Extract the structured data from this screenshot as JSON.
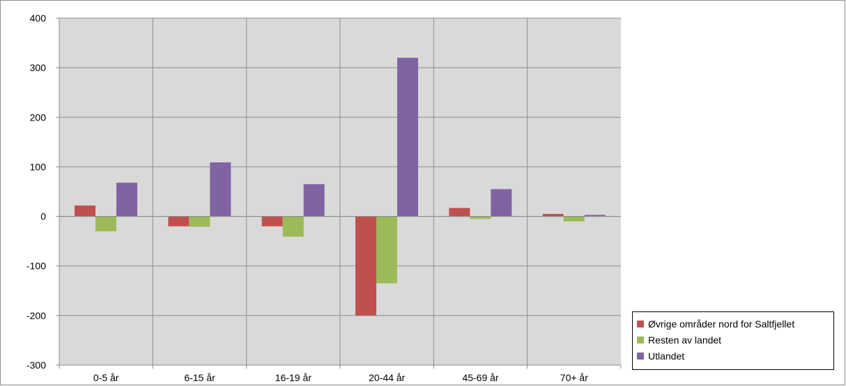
{
  "chart_data": {
    "type": "bar",
    "categories": [
      "0-5 år",
      "6-15 år",
      "16-19 år",
      "20-44 år",
      "45-69 år",
      "70+ år"
    ],
    "series": [
      {
        "name": "Øvrige områder nord for Saltfjellet",
        "color": "#C0504D",
        "values": [
          22,
          -20,
          -20,
          -200,
          17,
          5
        ]
      },
      {
        "name": "Resten av landet",
        "color": "#9BBB59",
        "values": [
          -30,
          -21,
          -41,
          -135,
          -5,
          -10
        ]
      },
      {
        "name": "Utlandet",
        "color": "#8064A2",
        "values": [
          68,
          109,
          65,
          320,
          55,
          3
        ]
      }
    ],
    "ylim": [
      -300,
      400
    ],
    "yticks": [
      400,
      300,
      200,
      100,
      0,
      -100,
      -200,
      -300
    ],
    "grid": true,
    "plot_background": "#D9D9D9",
    "legend_position": "right-bottom",
    "title": "",
    "xlabel": "",
    "ylabel": ""
  }
}
